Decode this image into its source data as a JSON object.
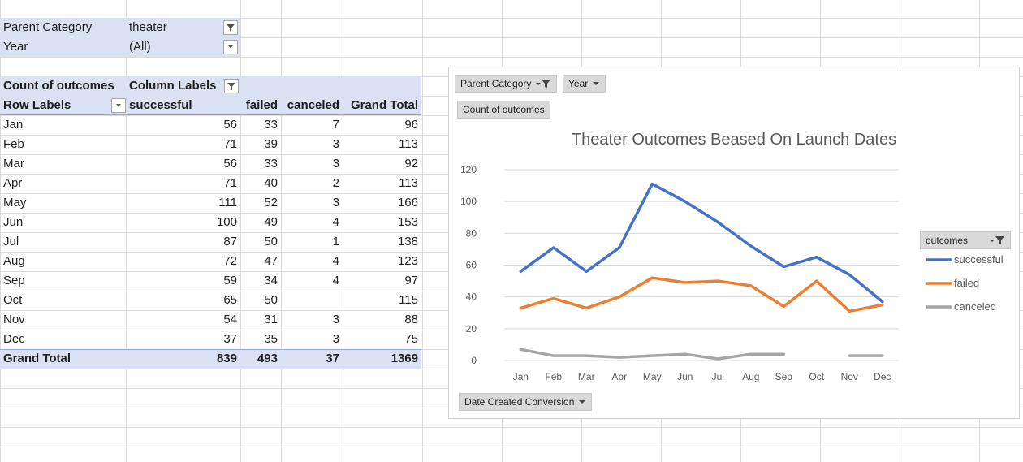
{
  "filters": {
    "parent_category_label": "Parent Category",
    "parent_category_value": "theater",
    "year_label": "Year",
    "year_value": "(All)"
  },
  "pivot": {
    "header_row1": {
      "count_of": "Count of outcomes",
      "column_labels": "Column Labels"
    },
    "header_row2": {
      "row_labels": "Row Labels",
      "successful": "successful",
      "failed": "failed",
      "canceled": "canceled",
      "grand_total": "Grand Total"
    },
    "rows": [
      {
        "month": "Jan",
        "successful": "56",
        "failed": "33",
        "canceled": "7",
        "total": "96"
      },
      {
        "month": "Feb",
        "successful": "71",
        "failed": "39",
        "canceled": "3",
        "total": "113"
      },
      {
        "month": "Mar",
        "successful": "56",
        "failed": "33",
        "canceled": "3",
        "total": "92"
      },
      {
        "month": "Apr",
        "successful": "71",
        "failed": "40",
        "canceled": "2",
        "total": "113"
      },
      {
        "month": "May",
        "successful": "111",
        "failed": "52",
        "canceled": "3",
        "total": "166"
      },
      {
        "month": "Jun",
        "successful": "100",
        "failed": "49",
        "canceled": "4",
        "total": "153"
      },
      {
        "month": "Jul",
        "successful": "87",
        "failed": "50",
        "canceled": "1",
        "total": "138"
      },
      {
        "month": "Aug",
        "successful": "72",
        "failed": "47",
        "canceled": "4",
        "total": "123"
      },
      {
        "month": "Sep",
        "successful": "59",
        "failed": "34",
        "canceled": "4",
        "total": "97"
      },
      {
        "month": "Oct",
        "successful": "65",
        "failed": "50",
        "canceled": "",
        "total": "115"
      },
      {
        "month": "Nov",
        "successful": "54",
        "failed": "31",
        "canceled": "3",
        "total": "88"
      },
      {
        "month": "Dec",
        "successful": "37",
        "failed": "35",
        "canceled": "3",
        "total": "75"
      }
    ],
    "grand_total": {
      "label": "Grand Total",
      "successful": "839",
      "failed": "493",
      "canceled": "37",
      "total": "1369"
    }
  },
  "chart_buttons": {
    "parent_category": "Parent Category",
    "year": "Year",
    "count_of_outcomes": "Count of outcomes",
    "date_created": "Date Created Conversion",
    "legend_field": "outcomes"
  },
  "colors": {
    "successful": "#4472c4",
    "failed": "#ed7d31",
    "canceled": "#a5a5a5",
    "pivot_band": "#d9e1f2"
  },
  "chart_data": {
    "type": "line",
    "title": "Theater Outcomes Beased On Launch Dates",
    "categories": [
      "Jan",
      "Feb",
      "Mar",
      "Apr",
      "May",
      "Jun",
      "Jul",
      "Aug",
      "Sep",
      "Oct",
      "Nov",
      "Dec"
    ],
    "series": [
      {
        "name": "successful",
        "values": [
          56,
          71,
          56,
          71,
          111,
          100,
          87,
          72,
          59,
          65,
          54,
          37
        ]
      },
      {
        "name": "failed",
        "values": [
          33,
          39,
          33,
          40,
          52,
          49,
          50,
          47,
          34,
          50,
          31,
          35
        ]
      },
      {
        "name": "canceled",
        "values": [
          7,
          3,
          3,
          2,
          3,
          4,
          1,
          4,
          4,
          null,
          3,
          3
        ]
      }
    ],
    "ylim": [
      0,
      120
    ],
    "yticks": [
      0,
      20,
      40,
      60,
      80,
      100,
      120
    ],
    "grid": true,
    "legend_position": "right"
  }
}
